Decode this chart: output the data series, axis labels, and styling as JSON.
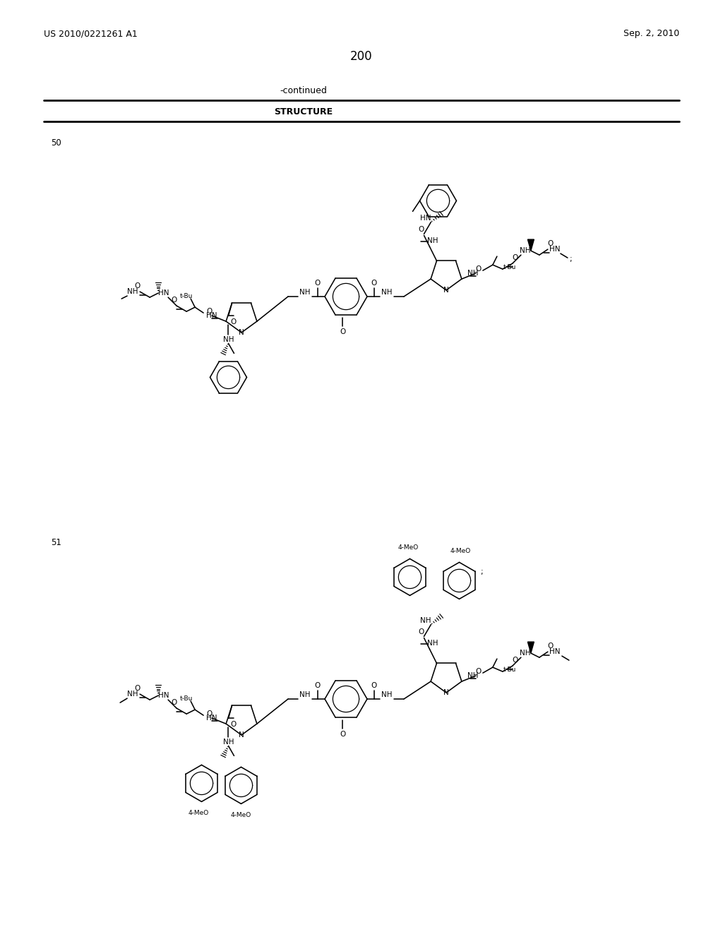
{
  "patent_id": "US 2010/0221261 A1",
  "patent_date": "Sep. 2, 2010",
  "page_number": "200",
  "continued": "-continued",
  "structure_header": "STRUCTURE",
  "compound_50": "50",
  "compound_51": "51",
  "bg_color": "#ffffff",
  "line_color": "#000000",
  "figsize": [
    10.24,
    13.2
  ],
  "dpi": 100
}
